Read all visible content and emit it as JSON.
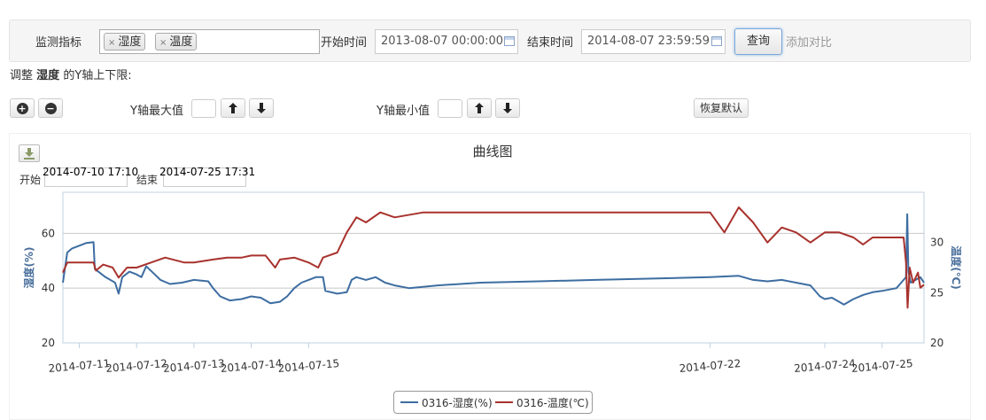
{
  "filter": {
    "metric_label": "监测指标",
    "tags": [
      {
        "label": "湿度"
      },
      {
        "label": "温度"
      }
    ],
    "tag_remove": "×",
    "start_label": "开始时间",
    "start_value": "2013-08-07 00:00:00",
    "end_label": "结束时间",
    "end_value": "2014-08-07 23:59:59",
    "query_button": "查询",
    "compare_link": "添加对比"
  },
  "adjust": {
    "prefix": "调整",
    "metric": "湿度",
    "suffix": "的Y轴上下限:",
    "zoom_in": "+",
    "zoom_out": "−",
    "ymax_label": "Y轴最大值",
    "ymin_label": "Y轴最小值",
    "reset_button": "恢复默认"
  },
  "icons": {
    "zoom_in": "plus-circle-icon",
    "zoom_out": "minus-circle-icon",
    "up": "arrow-up-icon",
    "down": "arrow-down-icon",
    "download": "download-icon",
    "calendar": "calendar-icon",
    "remove": "close-icon"
  },
  "range": {
    "start_label": "开始",
    "start_value": "2014-07-10 17:10",
    "end_label": "结束",
    "end_value": "2014-07-25 17:31"
  },
  "colors": {
    "humidity": "#3d6da1",
    "temperature": "#a8322d",
    "axis_title": "#4a6f9c"
  },
  "chart_data": {
    "type": "line",
    "title": "曲线图",
    "ylabel": "湿度(%)",
    "y2label": "温度(℃)",
    "ylim": [
      20,
      75
    ],
    "y2lim": [
      20,
      35
    ],
    "yticks": [
      20,
      40,
      60
    ],
    "y2ticks": [
      20,
      25,
      30
    ],
    "xlim": [
      "2014-07-10 17:10",
      "2014-07-25 17:31"
    ],
    "x_ticks": [
      "2014-07-11 00:00",
      "2014-07-12 00:00",
      "2014-07-13 00:00",
      "2014-07-14 00:00",
      "2014-07-15 00:00",
      "2014-07-22 00:00",
      "2014-07-24 00:00",
      "2014-07-25 00:00"
    ],
    "x_tick_labels": [
      "2014-07-11",
      "2014-07-12",
      "2014-07-13",
      "2014-07-14",
      "2014-07-15",
      "2014-07-22",
      "2014-07-24",
      "2014-07-25"
    ],
    "grid": true,
    "legend_position": "bottom-center",
    "series": [
      {
        "name": "0316-湿度(%)",
        "axis": "left",
        "points": [
          [
            "2014-07-10 17:10",
            42.0
          ],
          [
            "2014-07-10 19:00",
            53.0
          ],
          [
            "2014-07-10 21:00",
            54.5
          ],
          [
            "2014-07-11 00:00",
            55.5
          ],
          [
            "2014-07-11 03:00",
            56.5
          ],
          [
            "2014-07-11 06:00",
            56.8
          ],
          [
            "2014-07-11 06:30",
            47.0
          ],
          [
            "2014-07-11 08:00",
            46.0
          ],
          [
            "2014-07-11 11:00",
            44.0
          ],
          [
            "2014-07-11 15:00",
            42.0
          ],
          [
            "2014-07-11 16:30",
            38.0
          ],
          [
            "2014-07-11 18:00",
            44.0
          ],
          [
            "2014-07-11 21:00",
            46.0
          ],
          [
            "2014-07-12 00:00",
            45.0
          ],
          [
            "2014-07-12 02:00",
            44.0
          ],
          [
            "2014-07-12 04:00",
            48.0
          ],
          [
            "2014-07-12 07:00",
            45.5
          ],
          [
            "2014-07-12 10:00",
            43.0
          ],
          [
            "2014-07-12 14:00",
            41.5
          ],
          [
            "2014-07-12 19:00",
            42.0
          ],
          [
            "2014-07-13 00:00",
            43.0
          ],
          [
            "2014-07-13 06:00",
            42.5
          ],
          [
            "2014-07-13 08:00",
            40.0
          ],
          [
            "2014-07-13 11:00",
            37.0
          ],
          [
            "2014-07-13 15:00",
            35.5
          ],
          [
            "2014-07-13 20:00",
            36.0
          ],
          [
            "2014-07-14 00:00",
            37.0
          ],
          [
            "2014-07-14 04:00",
            36.5
          ],
          [
            "2014-07-14 08:00",
            34.5
          ],
          [
            "2014-07-14 12:00",
            35.0
          ],
          [
            "2014-07-14 15:00",
            37.0
          ],
          [
            "2014-07-14 18:00",
            40.0
          ],
          [
            "2014-07-14 21:00",
            42.0
          ],
          [
            "2014-07-15 00:00",
            43.0
          ],
          [
            "2014-07-15 03:00",
            44.0
          ],
          [
            "2014-07-15 06:00",
            44.0
          ],
          [
            "2014-07-15 07:00",
            39.0
          ],
          [
            "2014-07-15 12:00",
            38.0
          ],
          [
            "2014-07-15 16:00",
            38.5
          ],
          [
            "2014-07-15 18:00",
            43.0
          ],
          [
            "2014-07-15 20:00",
            44.0
          ],
          [
            "2014-07-16 00:00",
            43.0
          ],
          [
            "2014-07-16 04:00",
            44.0
          ],
          [
            "2014-07-16 08:00",
            42.0
          ],
          [
            "2014-07-16 12:00",
            41.0
          ],
          [
            "2014-07-16 18:00",
            40.0
          ],
          [
            "2014-07-17 06:00",
            41.0
          ],
          [
            "2014-07-18 00:00",
            42.0
          ],
          [
            "2014-07-19 00:00",
            42.5
          ],
          [
            "2014-07-20 00:00",
            43.0
          ],
          [
            "2014-07-21 00:00",
            43.5
          ],
          [
            "2014-07-22 00:00",
            44.0
          ],
          [
            "2014-07-22 12:00",
            44.5
          ],
          [
            "2014-07-22 18:00",
            43.0
          ],
          [
            "2014-07-23 00:00",
            42.5
          ],
          [
            "2014-07-23 06:00",
            43.0
          ],
          [
            "2014-07-23 12:00",
            42.0
          ],
          [
            "2014-07-23 18:00",
            41.0
          ],
          [
            "2014-07-23 22:00",
            37.0
          ],
          [
            "2014-07-24 00:00",
            36.0
          ],
          [
            "2014-07-24 03:00",
            36.5
          ],
          [
            "2014-07-24 06:00",
            35.0
          ],
          [
            "2014-07-24 08:00",
            34.0
          ],
          [
            "2014-07-24 12:00",
            36.0
          ],
          [
            "2014-07-24 16:00",
            37.5
          ],
          [
            "2014-07-24 20:00",
            38.5
          ],
          [
            "2014-07-25 00:00",
            39.0
          ],
          [
            "2014-07-25 06:00",
            40.0
          ],
          [
            "2014-07-25 09:00",
            43.0
          ],
          [
            "2014-07-25 10:00",
            44.0
          ],
          [
            "2014-07-25 10:30",
            67.0
          ],
          [
            "2014-07-25 11:00",
            46.0
          ],
          [
            "2014-07-25 12:00",
            42.0
          ],
          [
            "2014-07-25 14:00",
            43.0
          ],
          [
            "2014-07-25 16:00",
            44.0
          ],
          [
            "2014-07-25 17:31",
            42.0
          ]
        ]
      },
      {
        "name": "0316-温度(℃)",
        "axis": "right",
        "points": [
          [
            "2014-07-10 17:10",
            27.0
          ],
          [
            "2014-07-10 19:00",
            28.0
          ],
          [
            "2014-07-11 00:00",
            28.0
          ],
          [
            "2014-07-11 06:00",
            28.0
          ],
          [
            "2014-07-11 07:00",
            27.2
          ],
          [
            "2014-07-11 10:00",
            27.8
          ],
          [
            "2014-07-11 14:00",
            27.5
          ],
          [
            "2014-07-11 16:30",
            26.5
          ],
          [
            "2014-07-11 20:00",
            27.5
          ],
          [
            "2014-07-12 00:00",
            27.5
          ],
          [
            "2014-07-12 06:00",
            28.0
          ],
          [
            "2014-07-12 12:00",
            28.5
          ],
          [
            "2014-07-12 20:00",
            28.0
          ],
          [
            "2014-07-13 00:00",
            28.0
          ],
          [
            "2014-07-13 08:00",
            28.3
          ],
          [
            "2014-07-13 14:00",
            28.5
          ],
          [
            "2014-07-13 20:00",
            28.5
          ],
          [
            "2014-07-14 00:00",
            28.7
          ],
          [
            "2014-07-14 06:00",
            28.7
          ],
          [
            "2014-07-14 10:00",
            27.5
          ],
          [
            "2014-07-14 12:00",
            28.3
          ],
          [
            "2014-07-14 18:00",
            28.5
          ],
          [
            "2014-07-15 00:00",
            28.0
          ],
          [
            "2014-07-15 04:00",
            27.5
          ],
          [
            "2014-07-15 06:00",
            28.5
          ],
          [
            "2014-07-15 12:00",
            29.0
          ],
          [
            "2014-07-15 16:00",
            31.0
          ],
          [
            "2014-07-15 20:00",
            32.5
          ],
          [
            "2014-07-16 00:00",
            32.0
          ],
          [
            "2014-07-16 06:00",
            33.0
          ],
          [
            "2014-07-16 12:00",
            32.5
          ],
          [
            "2014-07-17 00:00",
            33.0
          ],
          [
            "2014-07-18 00:00",
            33.0
          ],
          [
            "2014-07-19 00:00",
            33.0
          ],
          [
            "2014-07-20 00:00",
            33.0
          ],
          [
            "2014-07-21 00:00",
            33.0
          ],
          [
            "2014-07-22 00:00",
            33.0
          ],
          [
            "2014-07-22 06:00",
            31.0
          ],
          [
            "2014-07-22 12:00",
            33.5
          ],
          [
            "2014-07-22 18:00",
            32.0
          ],
          [
            "2014-07-23 00:00",
            30.0
          ],
          [
            "2014-07-23 06:00",
            31.5
          ],
          [
            "2014-07-23 12:00",
            31.0
          ],
          [
            "2014-07-23 18:00",
            30.0
          ],
          [
            "2014-07-24 00:00",
            31.0
          ],
          [
            "2014-07-24 06:00",
            31.0
          ],
          [
            "2014-07-24 12:00",
            30.5
          ],
          [
            "2014-07-24 16:00",
            29.8
          ],
          [
            "2014-07-24 20:00",
            30.5
          ],
          [
            "2014-07-25 00:00",
            30.5
          ],
          [
            "2014-07-25 06:00",
            30.5
          ],
          [
            "2014-07-25 09:00",
            30.5
          ],
          [
            "2014-07-25 10:00",
            28.0
          ],
          [
            "2014-07-25 10:40",
            23.5
          ],
          [
            "2014-07-25 11:30",
            27.5
          ],
          [
            "2014-07-25 13:00",
            26.0
          ],
          [
            "2014-07-25 15:00",
            27.0
          ],
          [
            "2014-07-25 16:00",
            25.5
          ],
          [
            "2014-07-25 17:31",
            25.8
          ]
        ]
      }
    ]
  }
}
